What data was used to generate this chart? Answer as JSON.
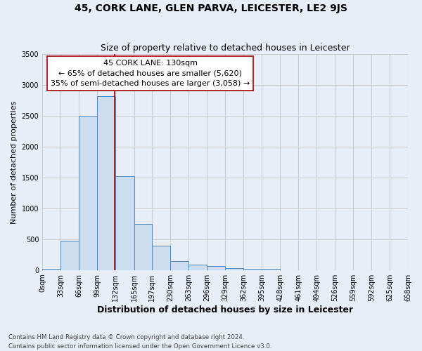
{
  "title": "45, CORK LANE, GLEN PARVA, LEICESTER, LE2 9JS",
  "subtitle": "Size of property relative to detached houses in Leicester",
  "xlabel": "Distribution of detached houses by size in Leicester",
  "ylabel": "Number of detached properties",
  "bin_edges": [
    0,
    33,
    66,
    99,
    132,
    165,
    197,
    230,
    263,
    296,
    329,
    362,
    395,
    428,
    461,
    494,
    526,
    559,
    592,
    625,
    658
  ],
  "bin_labels": [
    "0sqm",
    "33sqm",
    "66sqm",
    "99sqm",
    "132sqm",
    "165sqm",
    "197sqm",
    "230sqm",
    "263sqm",
    "296sqm",
    "329sqm",
    "362sqm",
    "395sqm",
    "428sqm",
    "461sqm",
    "494sqm",
    "526sqm",
    "559sqm",
    "592sqm",
    "625sqm",
    "658sqm"
  ],
  "bar_heights": [
    20,
    470,
    2500,
    2820,
    1520,
    750,
    400,
    150,
    90,
    60,
    30,
    20,
    15,
    0,
    0,
    0,
    0,
    0,
    0,
    0
  ],
  "bar_color": "#ccddf0",
  "bar_edge_color": "#5588bb",
  "property_line_x": 130,
  "property_line_color": "#aa0000",
  "annotation_text": "45 CORK LANE: 130sqm\n← 65% of detached houses are smaller (5,620)\n35% of semi-detached houses are larger (3,058) →",
  "annotation_box_color": "#ffffff",
  "annotation_box_edge_color": "#aa0000",
  "ylim": [
    0,
    3500
  ],
  "yticks": [
    0,
    500,
    1000,
    1500,
    2000,
    2500,
    3000,
    3500
  ],
  "grid_color": "#cccccc",
  "bg_color": "#e8eef8",
  "footnote": "Contains HM Land Registry data © Crown copyright and database right 2024.\nContains public sector information licensed under the Open Government Licence v3.0.",
  "title_fontsize": 10,
  "subtitle_fontsize": 9,
  "xlabel_fontsize": 9,
  "ylabel_fontsize": 8,
  "tick_fontsize": 7,
  "annot_fontsize": 8
}
